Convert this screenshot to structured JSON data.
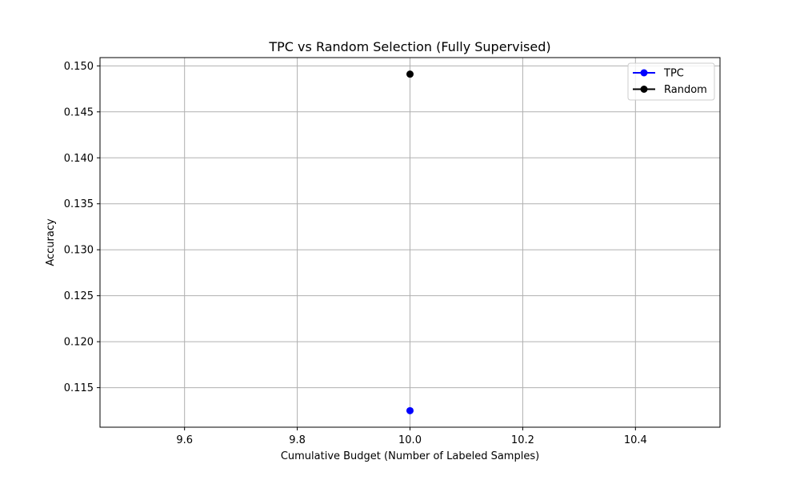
{
  "chart_data": {
    "type": "scatter",
    "title": "TPC vs Random Selection (Fully Supervised)",
    "xlabel": "Cumulative Budget (Number of Labeled Samples)",
    "ylabel": "Accuracy",
    "xlim": [
      9.45,
      10.55
    ],
    "ylim": [
      0.1107,
      0.1509
    ],
    "x_ticks": [
      9.6,
      9.8,
      10.0,
      10.2,
      10.4
    ],
    "x_tick_labels": [
      "9.6",
      "9.8",
      "10.0",
      "10.2",
      "10.4"
    ],
    "y_ticks": [
      0.115,
      0.12,
      0.125,
      0.13,
      0.135,
      0.14,
      0.145,
      0.15
    ],
    "y_tick_labels": [
      "0.115",
      "0.120",
      "0.125",
      "0.130",
      "0.135",
      "0.140",
      "0.145",
      "0.150"
    ],
    "grid": true,
    "legend_position": "top-right",
    "series": [
      {
        "name": "TPC",
        "color": "#0000ff",
        "marker": "circle",
        "x": [
          10.0
        ],
        "y": [
          0.1125
        ]
      },
      {
        "name": "Random",
        "color": "#000000",
        "marker": "circle",
        "x": [
          10.0
        ],
        "y": [
          0.1491
        ]
      }
    ]
  }
}
